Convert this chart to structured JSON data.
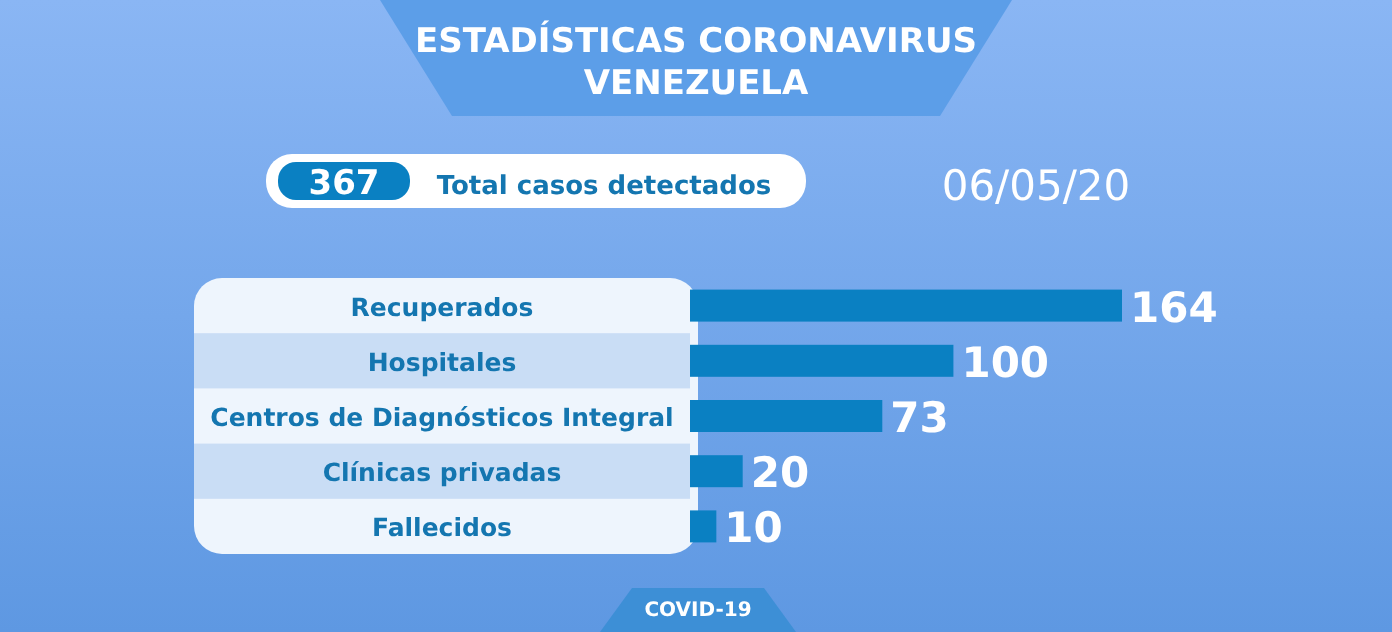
{
  "chart_data": {
    "type": "bar",
    "orientation": "horizontal",
    "title": "ESTADÍSTICAS CORONAVIRUS",
    "subtitle": "VENEZUELA",
    "categories": [
      "Recuperados",
      "Hospitales",
      "Centros de Diagnósticos Integral",
      "Clínicas privadas",
      "Fallecidos"
    ],
    "values": [
      164,
      100,
      73,
      20,
      10
    ],
    "color": "#0a80c2",
    "data_labels": true,
    "annotations": [
      "367",
      "Total casos detectados",
      "06/05/20",
      "COVID-19"
    ]
  }
}
